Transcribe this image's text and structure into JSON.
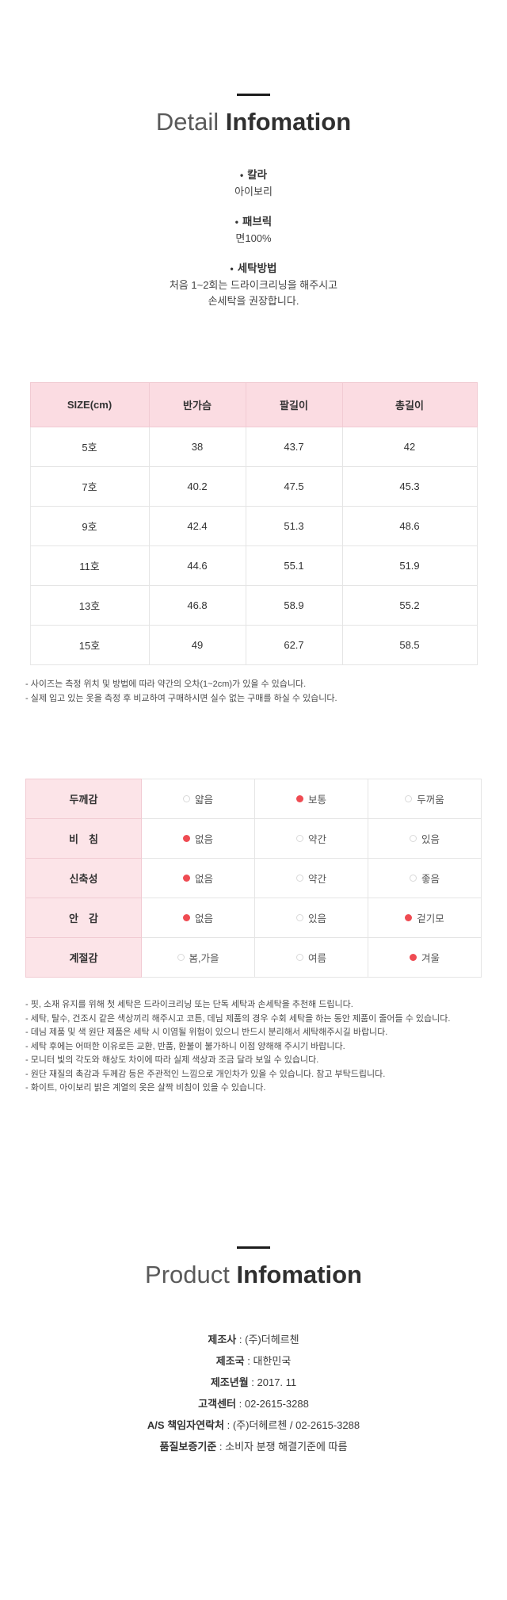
{
  "detail_section": {
    "title_light": "Detail",
    "title_bold": "Infomation",
    "bullet": "•",
    "attributes": [
      {
        "label": "칼라",
        "value_lines": [
          "아이보리"
        ]
      },
      {
        "label": "패브릭",
        "value_lines": [
          "면100%"
        ]
      },
      {
        "label": "세탁방법",
        "value_lines": [
          "처음 1~2회는 드라이크리닝을 해주시고",
          "손세탁을 권장합니다."
        ]
      }
    ]
  },
  "size_table": {
    "headers": [
      "SIZE(cm)",
      "반가슴",
      "팔길이",
      "총길이"
    ],
    "rows": [
      [
        "5호",
        "38",
        "43.7",
        "42"
      ],
      [
        "7호",
        "40.2",
        "47.5",
        "45.3"
      ],
      [
        "9호",
        "42.4",
        "51.3",
        "48.6"
      ],
      [
        "11호",
        "44.6",
        "55.1",
        "51.9"
      ],
      [
        "13호",
        "46.8",
        "58.9",
        "55.2"
      ],
      [
        "15호",
        "49",
        "62.7",
        "58.5"
      ]
    ],
    "notes": [
      "- 사이즈는 측정 위치 및 방법에 따라 약간의 오차(1~2cm)가 있을 수 있습니다.",
      "- 실제 입고 있는 옷을 측정 후 비교하여 구매하시면 실수 없는 구매를 하실 수 있습니다."
    ]
  },
  "feature_table": {
    "rows": [
      {
        "label": "두께감",
        "options": [
          {
            "text": "얇음",
            "selected": false
          },
          {
            "text": "보통",
            "selected": true
          },
          {
            "text": "두꺼움",
            "selected": false
          }
        ]
      },
      {
        "label": "비　침",
        "options": [
          {
            "text": "없음",
            "selected": true
          },
          {
            "text": "약간",
            "selected": false
          },
          {
            "text": "있음",
            "selected": false
          }
        ]
      },
      {
        "label": "신축성",
        "options": [
          {
            "text": "없음",
            "selected": true
          },
          {
            "text": "약간",
            "selected": false
          },
          {
            "text": "좋음",
            "selected": false
          }
        ]
      },
      {
        "label": "안　감",
        "options": [
          {
            "text": "없음",
            "selected": true
          },
          {
            "text": "있음",
            "selected": false
          },
          {
            "text": "겉기모",
            "selected": true
          }
        ]
      },
      {
        "label": "계절감",
        "options": [
          {
            "text": "봄,가을",
            "selected": false
          },
          {
            "text": "여름",
            "selected": false
          },
          {
            "text": "겨울",
            "selected": true
          }
        ]
      }
    ],
    "notes": [
      "- 핏, 소재 유지를 위해 첫 세탁은 드라이크리닝 또는 단독 세탁과 손세탁을 추천해 드립니다.",
      "- 세탁, 탈수, 건조시 같은 색상끼리 해주시고 코튼, 데님 제품의 경우 수회 세탁을 하는 동안 제품이 줄어들 수 있습니다.",
      "- 데님 제품 및 색 원단 제품은 세탁 시 이염될 위험이 있으니 반드시 분리해서 세탁해주시길 바랍니다.",
      "- 세탁 후에는 어떠한 이유로든 교환, 반품, 환불이 불가하니 이점 양해해 주시기 바랍니다.",
      "- 모니터 빛의 각도와 해상도 차이에 따라 실제 색상과 조금 달라 보일 수 있습니다.",
      "- 원단 재질의 촉감과 두께감 등은 주관적인 느낌으로 개인차가 있을 수 있습니다. 참고 부탁드립니다.",
      "- 화이트, 아이보리 밝은 계열의 옷은 살짝 비침이 있을 수 있습니다."
    ]
  },
  "product_section": {
    "title_light": "Product",
    "title_bold": "Infomation",
    "separator": " : ",
    "info": [
      {
        "label": "제조사",
        "value": "(주)더헤르첸"
      },
      {
        "label": "제조국",
        "value": "대한민국"
      },
      {
        "label": "제조년월",
        "value": "2017. 11"
      },
      {
        "label": "고객센터",
        "value": "02-2615-3288"
      },
      {
        "label": "A/S 책임자연락처",
        "value": "(주)더헤르첸 / 02-2615-3288"
      },
      {
        "label": "품질보증기준",
        "value": "소비자 분쟁 해결기준에 따름"
      }
    ]
  },
  "colors": {
    "table_header_pink": "#fbdce2",
    "feature_label_pink": "#fce4e8",
    "radio_selected_red": "#ef4b52",
    "border_gray": "#e5e5e5",
    "border_pink": "#f1cbd3"
  }
}
